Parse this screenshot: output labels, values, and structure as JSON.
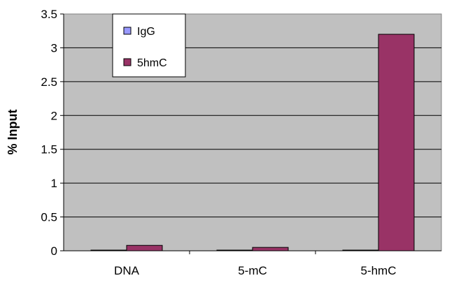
{
  "chart_data": {
    "type": "bar",
    "categories": [
      "DNA",
      "5-mC",
      "5-hmC"
    ],
    "series": [
      {
        "name": "IgG",
        "values": [
          0.01,
          0.01,
          0.01
        ],
        "color": "#9999ff"
      },
      {
        "name": "5hmC",
        "values": [
          0.08,
          0.05,
          3.2
        ],
        "color": "#993366"
      }
    ],
    "ylabel": "% Input",
    "ylim": [
      0,
      3.5
    ],
    "yticks": [
      "0",
      "0.5",
      "1",
      "1.5",
      "2",
      "2.5",
      "3",
      "3.5"
    ],
    "grid": true,
    "legend_position": "top-left-inside",
    "plot_background": "#c0c0c0"
  }
}
